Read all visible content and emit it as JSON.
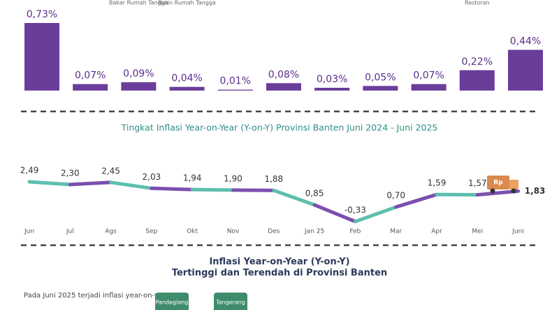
{
  "chart_data": [
    {
      "type": "bar",
      "categories": [
        null,
        null,
        "Bakar Rumah Tangga",
        "Rutin Rumah Tangga",
        null,
        null,
        null,
        null,
        null,
        "Restoran",
        null
      ],
      "values": [
        0.73,
        0.07,
        0.09,
        0.04,
        0.01,
        0.08,
        0.03,
        0.05,
        0.07,
        0.22,
        0.44
      ],
      "value_labels": [
        "0,73%",
        "0,07%",
        "0,09%",
        "0,04%",
        "0,01%",
        "0,08%",
        "0,03%",
        "0,05%",
        "0,07%",
        "0,22%",
        "0,44%"
      ],
      "color": "#6a3d9a"
    },
    {
      "type": "line",
      "title": "Tingkat Inflasi Year-on-Year (Y-on-Y) Provinsi Banten Juni 2024 - Juni 2025",
      "categories": [
        "Jun",
        "Jul",
        "Ags",
        "Sep",
        "Okt",
        "Nov",
        "Des",
        "Jan 25",
        "Feb",
        "Mar",
        "Apr",
        "Mei",
        "Juni"
      ],
      "values": [
        2.49,
        2.3,
        2.45,
        2.03,
        1.94,
        1.9,
        1.88,
        0.85,
        -0.33,
        0.7,
        1.59,
        1.57,
        1.83
      ],
      "value_labels": [
        "2,49",
        "2,30",
        "2,45",
        "2,03",
        "1,94",
        "1,90",
        "1,88",
        "0,85",
        "-0,33",
        "0,70",
        "1,59",
        "1,57",
        "1,83"
      ],
      "colors": [
        "#5cbfae",
        "#7b4fae"
      ],
      "icon_text": "Rp"
    }
  ],
  "section": {
    "title_line1": "Inflasi Year-on-Year (Y-on-Y)",
    "title_line2": "Tertinggi dan Terendah di Provinsi Banten",
    "text": "Pada Juni 2025 terjadi inflasi year-on-year",
    "regions": [
      "Pandeglang",
      "Tangerang"
    ]
  }
}
